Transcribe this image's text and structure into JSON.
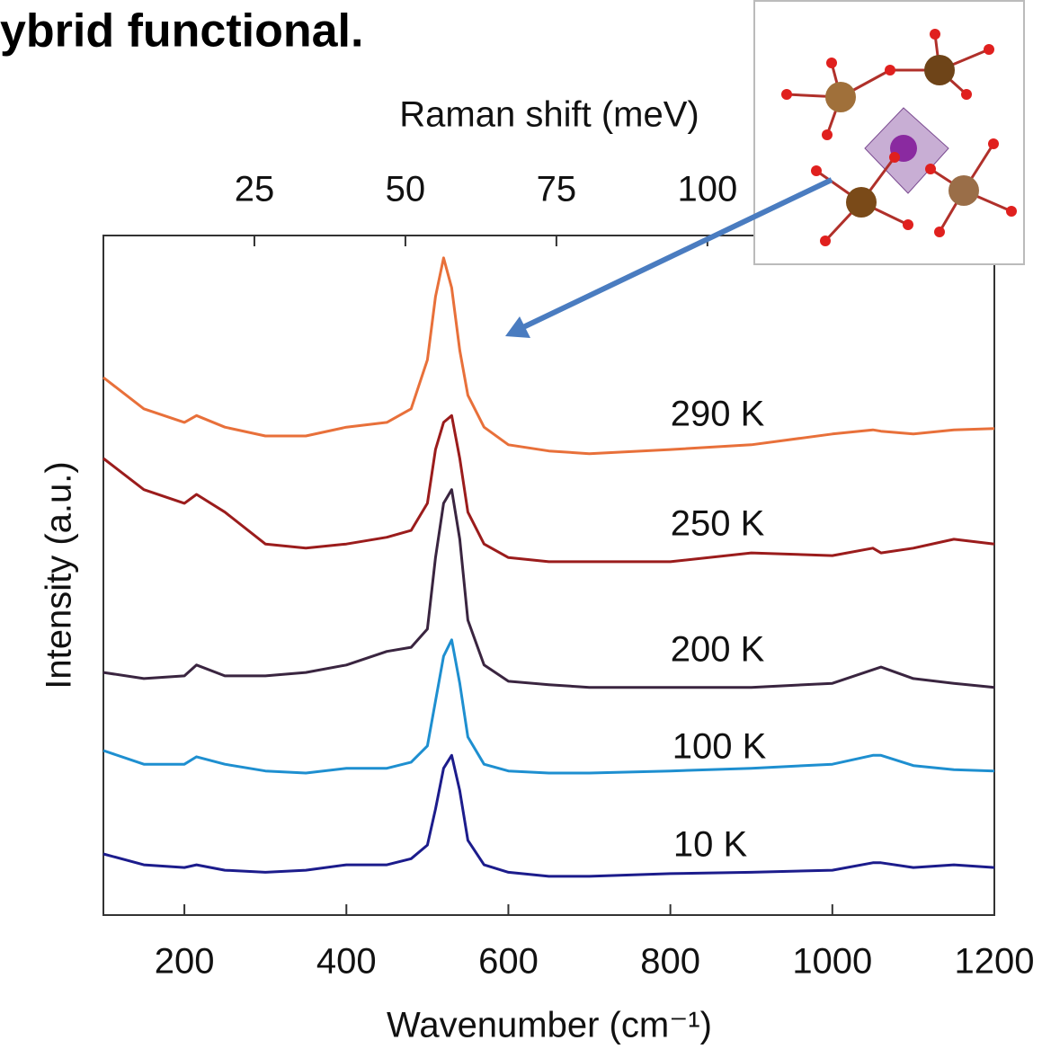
{
  "heading": "ybrid functional.",
  "chart_data": {
    "type": "line",
    "xlabel": "Wavenumber (cm⁻¹)",
    "x2label": "Raman shift (meV)",
    "ylabel": "Intensity (a.u.)",
    "x": [
      100,
      150,
      200,
      215,
      250,
      300,
      350,
      400,
      450,
      480,
      500,
      510,
      520,
      530,
      540,
      550,
      570,
      600,
      650,
      700,
      800,
      900,
      1000,
      1050,
      1060,
      1100,
      1150,
      1200
    ],
    "xlim": [
      100,
      1200
    ],
    "xticks": [
      200,
      400,
      600,
      800,
      1000,
      1200
    ],
    "x2lim": [
      0,
      147.5
    ],
    "x2ticks": [
      25,
      50,
      75,
      100
    ],
    "ylim": [
      0,
      100
    ],
    "series": [
      {
        "name": "290 K",
        "color": "#e8703a",
        "values": [
          79.1,
          74.5,
          72.5,
          73.5,
          71.8,
          70.5,
          70.5,
          71.8,
          72.5,
          74.5,
          81.7,
          91.0,
          96.7,
          92.3,
          83.1,
          76.5,
          71.8,
          69.2,
          68.3,
          67.9,
          68.5,
          69.2,
          70.8,
          71.4,
          71.2,
          70.8,
          71.4,
          71.6
        ]
      },
      {
        "name": "250 K",
        "color": "#9b1c1c",
        "values": [
          67.2,
          62.6,
          60.6,
          61.9,
          59.3,
          54.6,
          54.0,
          54.6,
          55.6,
          56.6,
          60.6,
          68.5,
          72.5,
          73.5,
          67.2,
          59.3,
          54.6,
          52.6,
          52.0,
          52.0,
          52.0,
          53.3,
          52.9,
          54.0,
          53.3,
          54.0,
          55.3,
          54.6
        ]
      },
      {
        "name": "200 K",
        "color": "#3a2540",
        "values": [
          35.7,
          34.8,
          35.2,
          36.8,
          35.2,
          35.2,
          35.7,
          36.8,
          38.8,
          39.4,
          42.1,
          52.6,
          60.6,
          62.6,
          55.3,
          43.4,
          36.8,
          34.4,
          33.9,
          33.5,
          33.5,
          33.5,
          34.1,
          36.1,
          36.5,
          34.8,
          34.1,
          33.5
        ]
      },
      {
        "name": "100 K",
        "color": "#1e8fd0",
        "values": [
          24.2,
          22.2,
          22.2,
          23.3,
          22.2,
          21.2,
          20.9,
          21.6,
          21.6,
          22.5,
          24.9,
          31.5,
          38.1,
          40.5,
          34.1,
          26.2,
          22.2,
          21.2,
          20.9,
          20.9,
          21.2,
          21.6,
          22.2,
          23.5,
          23.5,
          22.0,
          21.4,
          21.2
        ]
      },
      {
        "name": "10 K",
        "color": "#1c1c8c",
        "values": [
          9.0,
          7.4,
          7.0,
          7.4,
          6.6,
          6.3,
          6.6,
          7.4,
          7.4,
          8.3,
          10.3,
          15.6,
          21.6,
          23.5,
          18.3,
          11.0,
          7.4,
          6.3,
          5.7,
          5.7,
          6.1,
          6.3,
          6.6,
          7.7,
          7.7,
          7.0,
          7.4,
          7.0
        ]
      }
    ]
  }
}
